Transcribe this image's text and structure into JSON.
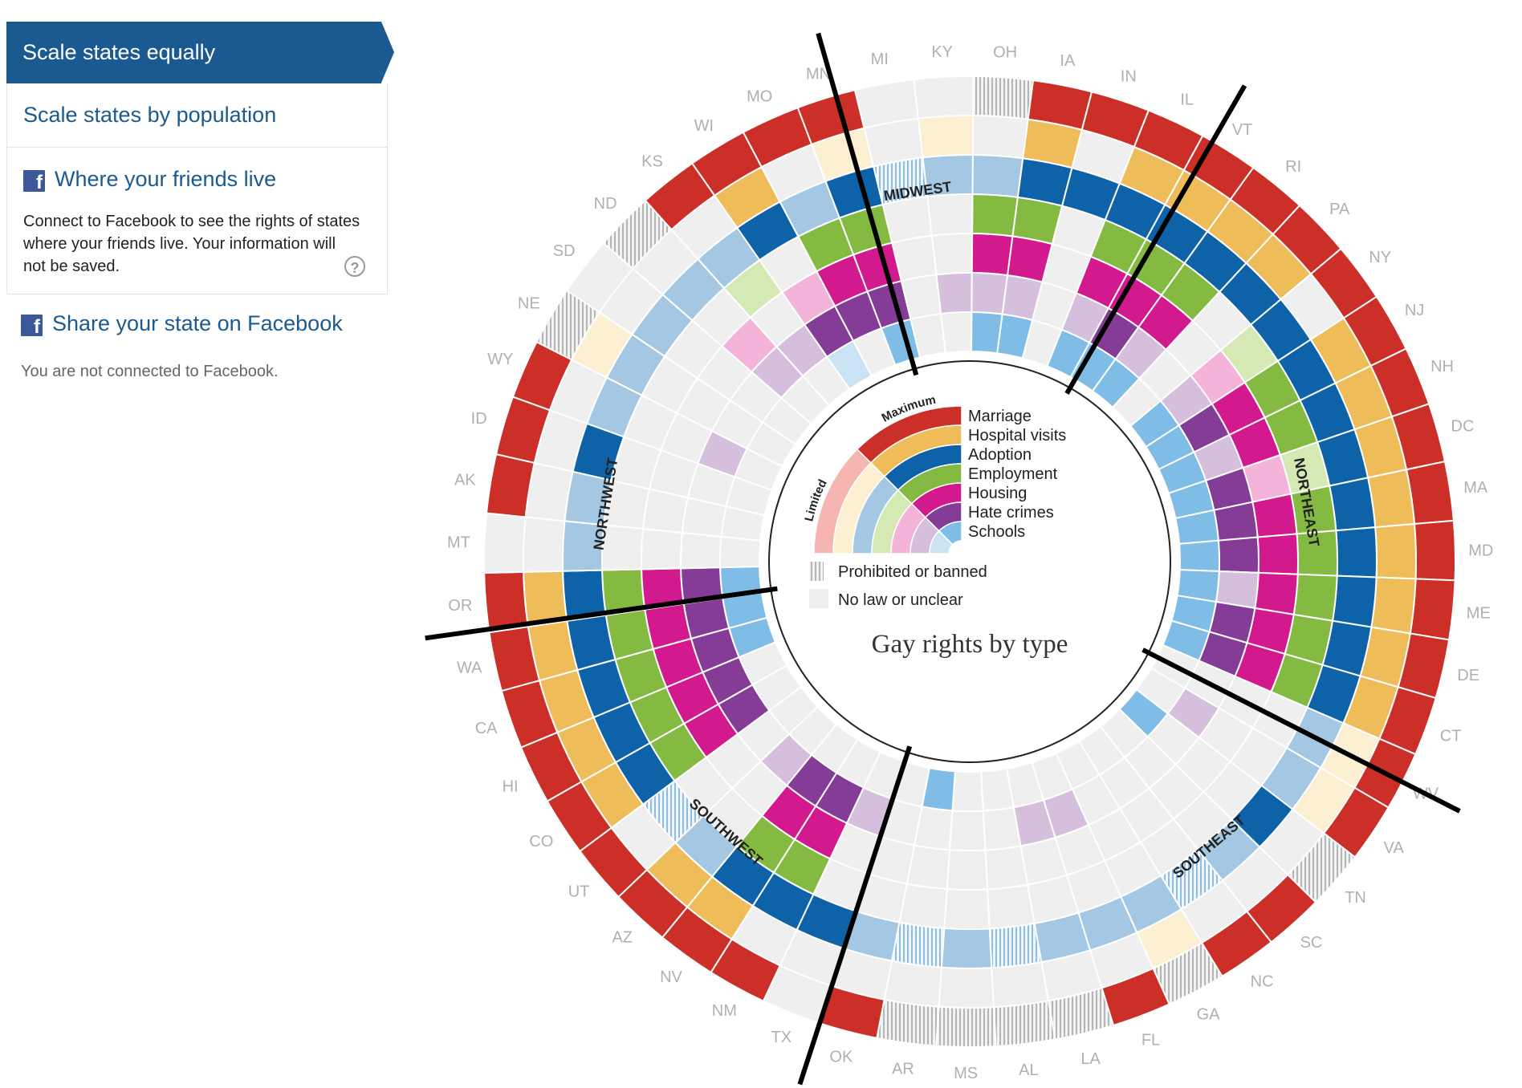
{
  "sidebar": {
    "scale_equal_label": "Scale states equally",
    "scale_population_label": "Scale states by population",
    "friends_link": "Where your friends live",
    "friends_desc": "Connect to Facebook to see the rights of states where your friends live. Your information will not be saved.",
    "help_symbol": "?",
    "facebook_icon_letter": "f",
    "share_link": "Share your state on Facebook",
    "connection_status": "You are not connected to Facebook."
  },
  "chart_data": {
    "type": "radial",
    "title": "Gay rights by type",
    "ring_order_outer_to_inner": [
      "Marriage",
      "Hospital visits",
      "Adoption",
      "Employment",
      "Housing",
      "Hate crimes",
      "Schools"
    ],
    "colors": {
      "Marriage": {
        "max": "#cc2f27",
        "limited": "#f5b5b1"
      },
      "Hospital visits": {
        "max": "#eebc59",
        "limited": "#fdefd2"
      },
      "Adoption": {
        "max": "#0d62a8",
        "limited": "#a4c8e3"
      },
      "Employment": {
        "max": "#84ba42",
        "limited": "#d5e9b4"
      },
      "Housing": {
        "max": "#d2198d",
        "limited": "#f4b4d9"
      },
      "Hate crimes": {
        "max": "#843c97",
        "limited": "#d6bfdd"
      },
      "Schools": {
        "max": "#7fbde7",
        "limited": "#c9e2f4"
      },
      "none": "#efefef",
      "prohibited": "#bcbcbc"
    },
    "value_codes": {
      "M": "Maximum",
      "L": "Limited",
      "P": "Prohibited or banned",
      "N": "No law or unclear"
    },
    "legend": {
      "maximum_label": "Maximum",
      "limited_label": "Limited",
      "prohibited_label": "Prohibited or banned",
      "none_label": "No law or unclear"
    },
    "regions": [
      {
        "name": "MIDWEST",
        "start_angle": 344
      },
      {
        "name": "NORTHEAST",
        "start_angle": 30
      },
      {
        "name": "SOUTHEAST",
        "start_angle": 117
      },
      {
        "name": "SOUTHWEST",
        "start_angle": 198
      },
      {
        "name": "NORTHWEST",
        "start_angle": 262
      }
    ],
    "states": [
      {
        "name": "IA",
        "v": [
          "M",
          "M",
          "M",
          "M",
          "M",
          "L",
          "M"
        ]
      },
      {
        "name": "IN",
        "v": [
          "M",
          "N",
          "M",
          "N",
          "N",
          "N",
          "N"
        ]
      },
      {
        "name": "IL",
        "v": [
          "M",
          "M",
          "M",
          "M",
          "M",
          "L",
          "M"
        ]
      },
      {
        "name": "VT",
        "v": [
          "M",
          "M",
          "M",
          "M",
          "M",
          "M",
          "M"
        ]
      },
      {
        "name": "RI",
        "v": [
          "M",
          "M",
          "M",
          "M",
          "M",
          "L",
          "M"
        ]
      },
      {
        "name": "PA",
        "v": [
          "M",
          "M",
          "M",
          "N",
          "N",
          "N",
          "N"
        ]
      },
      {
        "name": "NY",
        "v": [
          "M",
          "N",
          "M",
          "L",
          "L",
          "L",
          "M"
        ]
      },
      {
        "name": "NJ",
        "v": [
          "M",
          "M",
          "M",
          "M",
          "M",
          "M",
          "M"
        ]
      },
      {
        "name": "NH",
        "v": [
          "M",
          "M",
          "M",
          "M",
          "M",
          "L",
          "M"
        ]
      },
      {
        "name": "DC",
        "v": [
          "M",
          "M",
          "M",
          "L",
          "L",
          "M",
          "M"
        ]
      },
      {
        "name": "MA",
        "v": [
          "M",
          "M",
          "M",
          "M",
          "M",
          "M",
          "M"
        ]
      },
      {
        "name": "MD",
        "v": [
          "M",
          "M",
          "M",
          "M",
          "M",
          "M",
          "M"
        ]
      },
      {
        "name": "ME",
        "v": [
          "M",
          "M",
          "M",
          "M",
          "M",
          "L",
          "M"
        ]
      },
      {
        "name": "DE",
        "v": [
          "M",
          "M",
          "M",
          "M",
          "M",
          "M",
          "M"
        ]
      },
      {
        "name": "CT",
        "v": [
          "M",
          "M",
          "M",
          "M",
          "M",
          "M",
          "M"
        ]
      },
      {
        "name": "WV",
        "v": [
          "M",
          "L",
          "L",
          "N",
          "N",
          "N",
          "N"
        ]
      },
      {
        "name": "VA",
        "v": [
          "M",
          "L",
          "L",
          "N",
          "N",
          "L",
          "N"
        ]
      },
      {
        "name": "TN",
        "v": [
          "P",
          "N",
          "M",
          "N",
          "N",
          "N",
          "M"
        ]
      },
      {
        "name": "SC",
        "v": [
          "M",
          "N",
          "L",
          "N",
          "N",
          "N",
          "N"
        ]
      },
      {
        "name": "NC",
        "v": [
          "M",
          "N",
          "P",
          "N",
          "N",
          "N",
          "N"
        ]
      },
      {
        "name": "GA",
        "v": [
          "P",
          "L",
          "L",
          "N",
          "N",
          "N",
          "N"
        ]
      },
      {
        "name": "FL",
        "v": [
          "M",
          "N",
          "L",
          "N",
          "N",
          "L",
          "N"
        ]
      },
      {
        "name": "LA",
        "v": [
          "P",
          "N",
          "L",
          "N",
          "N",
          "L",
          "N"
        ]
      },
      {
        "name": "AL",
        "v": [
          "P",
          "N",
          "P",
          "N",
          "N",
          "N",
          "N"
        ]
      },
      {
        "name": "MS",
        "v": [
          "P",
          "N",
          "L",
          "N",
          "N",
          "N",
          "N"
        ]
      },
      {
        "name": "AR",
        "v": [
          "P",
          "N",
          "P",
          "N",
          "N",
          "N",
          "M"
        ]
      },
      {
        "name": "OK",
        "v": [
          "M",
          "N",
          "L",
          "N",
          "N",
          "N",
          "N"
        ]
      },
      {
        "name": "TX",
        "v": [
          "N",
          "N",
          "M",
          "N",
          "N",
          "L",
          "N"
        ]
      },
      {
        "name": "NM",
        "v": [
          "M",
          "N",
          "M",
          "M",
          "M",
          "M",
          "N"
        ]
      },
      {
        "name": "NV",
        "v": [
          "M",
          "M",
          "M",
          "M",
          "M",
          "M",
          "N"
        ]
      },
      {
        "name": "AZ",
        "v": [
          "M",
          "M",
          "L",
          "N",
          "N",
          "L",
          "N"
        ]
      },
      {
        "name": "UT",
        "v": [
          "M",
          "N",
          "P",
          "N",
          "N",
          "N",
          "N"
        ]
      },
      {
        "name": "CO",
        "v": [
          "M",
          "M",
          "M",
          "M",
          "M",
          "M",
          "N"
        ]
      },
      {
        "name": "HI",
        "v": [
          "M",
          "M",
          "M",
          "M",
          "M",
          "M",
          "N"
        ]
      },
      {
        "name": "CA",
        "v": [
          "M",
          "M",
          "M",
          "M",
          "M",
          "M",
          "M"
        ]
      },
      {
        "name": "WA",
        "v": [
          "M",
          "M",
          "M",
          "M",
          "M",
          "M",
          "M"
        ]
      },
      {
        "name": "OR",
        "v": [
          "M",
          "M",
          "M",
          "M",
          "M",
          "M",
          "M"
        ]
      },
      {
        "name": "MT",
        "v": [
          "N",
          "N",
          "L",
          "N",
          "N",
          "N",
          "N"
        ]
      },
      {
        "name": "AK",
        "v": [
          "M",
          "N",
          "L",
          "N",
          "N",
          "N",
          "N"
        ]
      },
      {
        "name": "ID",
        "v": [
          "M",
          "N",
          "M",
          "N",
          "N",
          "N",
          "N"
        ]
      },
      {
        "name": "WY",
        "v": [
          "M",
          "N",
          "L",
          "N",
          "N",
          "L",
          "N"
        ]
      },
      {
        "name": "NE",
        "v": [
          "P",
          "L",
          "L",
          "N",
          "N",
          "N",
          "N"
        ]
      },
      {
        "name": "SD",
        "v": [
          "N",
          "N",
          "L",
          "N",
          "N",
          "N",
          "N"
        ]
      },
      {
        "name": "ND",
        "v": [
          "P",
          "N",
          "L",
          "N",
          "L",
          "L",
          "N"
        ]
      },
      {
        "name": "KS",
        "v": [
          "M",
          "N",
          "L",
          "L",
          "N",
          "L",
          "N"
        ]
      },
      {
        "name": "WI",
        "v": [
          "M",
          "M",
          "M",
          "N",
          "L",
          "M",
          "L"
        ]
      },
      {
        "name": "MO",
        "v": [
          "M",
          "N",
          "L",
          "M",
          "M",
          "M",
          "N"
        ]
      },
      {
        "name": "MN",
        "v": [
          "M",
          "L",
          "M",
          "M",
          "M",
          "M",
          "M"
        ]
      },
      {
        "name": "MI",
        "v": [
          "N",
          "N",
          "P",
          "N",
          "N",
          "N",
          "N"
        ]
      },
      {
        "name": "KY",
        "v": [
          "N",
          "L",
          "L",
          "N",
          "N",
          "L",
          "N"
        ]
      },
      {
        "name": "OH",
        "v": [
          "P",
          "N",
          "L",
          "M",
          "M",
          "L",
          "M"
        ]
      }
    ]
  }
}
